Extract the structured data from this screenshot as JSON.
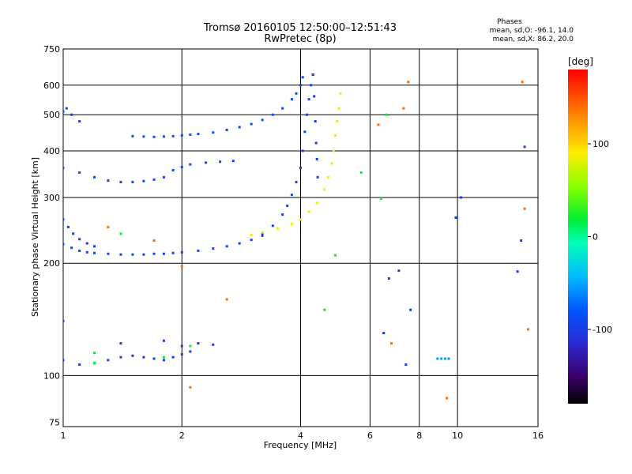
{
  "chart_data": {
    "type": "scatter",
    "title": "Tromsø 20160105 12:50:00–12:51:43",
    "subtitle": "RwPretec (8p)",
    "xlabel": "Frequency [MHz]",
    "ylabel": "Stationary phase Virtual Height [km]",
    "xscale": "log",
    "yscale": "log",
    "xlim": [
      1,
      16
    ],
    "ylim": [
      73,
      750
    ],
    "x_ticks": [
      1,
      2,
      4,
      6,
      8,
      10,
      16
    ],
    "y_ticks": [
      75,
      100,
      200,
      300,
      400,
      500,
      600,
      750
    ],
    "grid": true,
    "stats": {
      "heading": "Phases",
      "line_o": "mean, sd,O:  -96.1, 14.0",
      "line_x": "mean, sd,X:  86.2, 20.0"
    },
    "colorbar": {
      "unit": "[deg]",
      "range": [
        -180,
        180
      ],
      "ticks": [
        100,
        0,
        -100
      ]
    },
    "traces": [
      {
        "name": "",
        "phase": -95,
        "points": [
          [
            1.0,
            225
          ],
          [
            1.05,
            220
          ],
          [
            1.1,
            216
          ],
          [
            1.15,
            214
          ],
          [
            1.2,
            213
          ],
          [
            1.3,
            212
          ],
          [
            1.4,
            211
          ],
          [
            1.5,
            211
          ],
          [
            1.6,
            211
          ],
          [
            1.7,
            212
          ],
          [
            1.8,
            212
          ],
          [
            1.9,
            213
          ],
          [
            2.0,
            214
          ],
          [
            2.2,
            216
          ],
          [
            2.4,
            219
          ],
          [
            2.6,
            222
          ],
          [
            2.8,
            226
          ],
          [
            3.0,
            231
          ],
          [
            3.2,
            237
          ]
        ]
      },
      {
        "name": "",
        "phase": -100,
        "points": [
          [
            1.0,
            262
          ],
          [
            1.03,
            250
          ],
          [
            1.06,
            240
          ],
          [
            1.1,
            232
          ],
          [
            1.15,
            226
          ],
          [
            1.2,
            222
          ]
        ]
      },
      {
        "name": "",
        "phase": -95,
        "points": [
          [
            1.0,
            510
          ],
          [
            1.02,
            520
          ],
          [
            1.05,
            500
          ],
          [
            1.1,
            480
          ]
        ]
      },
      {
        "name": "",
        "phase": -90,
        "points": [
          [
            1.5,
            438
          ],
          [
            1.6,
            437
          ],
          [
            1.7,
            436
          ],
          [
            1.8,
            437
          ],
          [
            1.9,
            438
          ],
          [
            2.0,
            440
          ],
          [
            2.1,
            442
          ],
          [
            2.2,
            444
          ],
          [
            2.4,
            448
          ],
          [
            2.6,
            455
          ],
          [
            2.8,
            463
          ],
          [
            3.0,
            472
          ],
          [
            3.2,
            484
          ],
          [
            3.4,
            500
          ],
          [
            3.6,
            520
          ],
          [
            3.8,
            550
          ],
          [
            3.9,
            570
          ],
          [
            4.0,
            600
          ],
          [
            4.05,
            630
          ]
        ]
      },
      {
        "name": "",
        "phase": -90,
        "points": [
          [
            1.0,
            360
          ],
          [
            1.1,
            350
          ],
          [
            1.2,
            340
          ],
          [
            1.3,
            333
          ],
          [
            1.4,
            330
          ],
          [
            1.5,
            330
          ],
          [
            1.6,
            332
          ],
          [
            1.7,
            335
          ],
          [
            1.8,
            340
          ]
        ]
      },
      {
        "name": "",
        "phase": -92,
        "points": [
          [
            1.9,
            355
          ],
          [
            2.0,
            362
          ],
          [
            2.1,
            368
          ],
          [
            2.3,
            372
          ],
          [
            2.5,
            374
          ],
          [
            2.7,
            376
          ]
        ]
      },
      {
        "name": "",
        "phase": -95,
        "points": [
          [
            3.2,
            240
          ],
          [
            3.4,
            252
          ],
          [
            3.6,
            270
          ],
          [
            3.7,
            285
          ],
          [
            3.8,
            305
          ],
          [
            3.9,
            330
          ],
          [
            4.0,
            360
          ],
          [
            4.05,
            400
          ],
          [
            4.1,
            450
          ],
          [
            4.15,
            500
          ],
          [
            4.2,
            550
          ],
          [
            4.25,
            600
          ],
          [
            4.3,
            640
          ]
        ]
      },
      {
        "name": "",
        "phase": -100,
        "points": [
          [
            4.3,
            640
          ],
          [
            4.33,
            560
          ],
          [
            4.36,
            480
          ],
          [
            4.38,
            420
          ],
          [
            4.4,
            380
          ],
          [
            4.42,
            340
          ]
        ]
      },
      {
        "name": "",
        "phase": 85,
        "points": [
          [
            3.0,
            238
          ],
          [
            3.2,
            242
          ],
          [
            3.5,
            248
          ],
          [
            3.8,
            255
          ],
          [
            4.0,
            262
          ],
          [
            4.2,
            275
          ],
          [
            4.4,
            290
          ],
          [
            4.6,
            315
          ],
          [
            4.7,
            340
          ],
          [
            4.8,
            370
          ],
          [
            4.85,
            400
          ],
          [
            4.9,
            440
          ],
          [
            4.95,
            480
          ],
          [
            5.0,
            520
          ],
          [
            5.05,
            570
          ]
        ]
      },
      {
        "name": "",
        "phase": -100,
        "points": [
          [
            1.0,
            110
          ],
          [
            1.1,
            107
          ],
          [
            1.2,
            108
          ],
          [
            1.3,
            110
          ],
          [
            1.4,
            112
          ],
          [
            1.5,
            113
          ],
          [
            1.6,
            112
          ],
          [
            1.7,
            111
          ],
          [
            1.8,
            110
          ],
          [
            1.9,
            112
          ],
          [
            2.0,
            114
          ],
          [
            2.1,
            116
          ]
        ]
      },
      {
        "name": "",
        "phase": -55,
        "points": [
          [
            8.9,
            111
          ],
          [
            9.1,
            111
          ],
          [
            9.3,
            111
          ],
          [
            9.5,
            111
          ]
        ]
      },
      {
        "name": "",
        "phase": -100,
        "points": [
          [
            1.0,
            140
          ],
          [
            1.4,
            122
          ],
          [
            1.8,
            124
          ],
          [
            2.0,
            120
          ],
          [
            2.2,
            122
          ],
          [
            2.4,
            121
          ],
          [
            6.5,
            130
          ],
          [
            6.7,
            182
          ],
          [
            7.1,
            191
          ],
          [
            7.4,
            107
          ],
          [
            7.6,
            150
          ],
          [
            9.9,
            265
          ],
          [
            10.2,
            300
          ],
          [
            14.2,
            190
          ],
          [
            14.5,
            230
          ],
          [
            14.8,
            410
          ]
        ]
      },
      {
        "name": "",
        "phase": 140,
        "points": [
          [
            1.3,
            250
          ],
          [
            1.7,
            230
          ],
          [
            2.0,
            196
          ],
          [
            2.1,
            93
          ],
          [
            2.6,
            160
          ],
          [
            6.3,
            470
          ],
          [
            6.8,
            122
          ],
          [
            7.3,
            520
          ],
          [
            7.5,
            612
          ],
          [
            9.4,
            87
          ],
          [
            14.6,
            612
          ],
          [
            14.8,
            280
          ],
          [
            15.1,
            133
          ]
        ]
      },
      {
        "name": "",
        "phase": 20,
        "points": [
          [
            1.2,
            108
          ],
          [
            1.2,
            115
          ],
          [
            1.4,
            240
          ],
          [
            1.8,
            112
          ],
          [
            2.1,
            120
          ],
          [
            4.6,
            150
          ],
          [
            4.9,
            210
          ],
          [
            5.7,
            350
          ],
          [
            6.4,
            298
          ],
          [
            6.6,
            500
          ]
        ]
      }
    ]
  }
}
